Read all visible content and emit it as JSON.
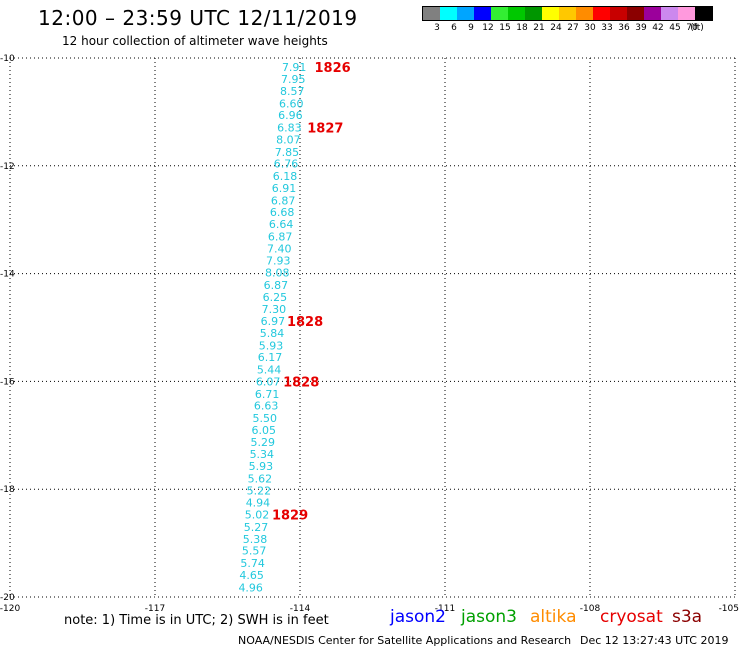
{
  "header": {
    "title": "12:00 – 23:59 UTC 12/11/2019",
    "subtitle": "12 hour collection of altimeter wave heights"
  },
  "legend": {
    "unit": "(ft)",
    "bins": [
      {
        "label": "3",
        "color": "#808080"
      },
      {
        "label": "6",
        "color": "#00ffff"
      },
      {
        "label": "9",
        "color": "#00a5ff"
      },
      {
        "label": "12",
        "color": "#0000ff"
      },
      {
        "label": "15",
        "color": "#33ee33"
      },
      {
        "label": "18",
        "color": "#00c800"
      },
      {
        "label": "21",
        "color": "#009600"
      },
      {
        "label": "24",
        "color": "#ffff00"
      },
      {
        "label": "27",
        "color": "#ffc800"
      },
      {
        "label": "30",
        "color": "#ff8c00"
      },
      {
        "label": "33",
        "color": "#ff0000"
      },
      {
        "label": "36",
        "color": "#c80000"
      },
      {
        "label": "39",
        "color": "#8b0000"
      },
      {
        "label": "42",
        "color": "#9b009b"
      },
      {
        "label": "45",
        "color": "#cc88ee"
      },
      {
        "label": "70",
        "color": "#ff99dd"
      },
      {
        "label": "",
        "color": "#000000"
      }
    ]
  },
  "chart_data": {
    "type": "map",
    "lon_range": [
      -120,
      -105
    ],
    "lat_range": [
      -20,
      -10
    ],
    "lon_ticks": [
      "-120",
      "-117",
      "-114",
      "-111",
      "-108",
      "-105"
    ],
    "lat_ticks": [
      "-10",
      "-12",
      "-14",
      "-16",
      "-18",
      "-20"
    ],
    "grid": "dotted",
    "wave_color": "#22c8dd",
    "time_color": "#e60000",
    "wave_heights": [
      {
        "lon": -114.12,
        "lat": -10.17,
        "value": "7.91"
      },
      {
        "lon": -114.14,
        "lat": -10.39,
        "value": "7.95"
      },
      {
        "lon": -114.16,
        "lat": -10.61,
        "value": "8.57"
      },
      {
        "lon": -114.18,
        "lat": -10.84,
        "value": "6.60"
      },
      {
        "lon": -114.2,
        "lat": -11.06,
        "value": "6.96"
      },
      {
        "lon": -114.22,
        "lat": -11.29,
        "value": "6.83"
      },
      {
        "lon": -114.24,
        "lat": -11.51,
        "value": "8.07"
      },
      {
        "lon": -114.27,
        "lat": -11.74,
        "value": "7.85"
      },
      {
        "lon": -114.29,
        "lat": -11.96,
        "value": "6.76"
      },
      {
        "lon": -114.31,
        "lat": -12.19,
        "value": "6.18"
      },
      {
        "lon": -114.33,
        "lat": -12.41,
        "value": "6.91"
      },
      {
        "lon": -114.35,
        "lat": -12.64,
        "value": "6.87"
      },
      {
        "lon": -114.37,
        "lat": -12.86,
        "value": "6.68"
      },
      {
        "lon": -114.39,
        "lat": -13.08,
        "value": "6.64"
      },
      {
        "lon": -114.41,
        "lat": -13.31,
        "value": "6.87"
      },
      {
        "lon": -114.43,
        "lat": -13.53,
        "value": "7.40"
      },
      {
        "lon": -114.45,
        "lat": -13.76,
        "value": "7.93"
      },
      {
        "lon": -114.47,
        "lat": -13.98,
        "value": "8.08"
      },
      {
        "lon": -114.5,
        "lat": -14.21,
        "value": "6.87"
      },
      {
        "lon": -114.52,
        "lat": -14.43,
        "value": "6.25"
      },
      {
        "lon": -114.54,
        "lat": -14.66,
        "value": "7.30"
      },
      {
        "lon": -114.56,
        "lat": -14.88,
        "value": "6.97"
      },
      {
        "lon": -114.58,
        "lat": -15.1,
        "value": "5.84"
      },
      {
        "lon": -114.6,
        "lat": -15.33,
        "value": "5.93"
      },
      {
        "lon": -114.62,
        "lat": -15.55,
        "value": "6.17"
      },
      {
        "lon": -114.64,
        "lat": -15.78,
        "value": "5.44"
      },
      {
        "lon": -114.66,
        "lat": -16.0,
        "value": "6.07"
      },
      {
        "lon": -114.68,
        "lat": -16.23,
        "value": "6.71"
      },
      {
        "lon": -114.7,
        "lat": -16.45,
        "value": "6.63"
      },
      {
        "lon": -114.73,
        "lat": -16.68,
        "value": "5.50"
      },
      {
        "lon": -114.75,
        "lat": -16.9,
        "value": "6.05"
      },
      {
        "lon": -114.77,
        "lat": -17.12,
        "value": "5.29"
      },
      {
        "lon": -114.79,
        "lat": -17.35,
        "value": "5.34"
      },
      {
        "lon": -114.81,
        "lat": -17.57,
        "value": "5.93"
      },
      {
        "lon": -114.83,
        "lat": -17.8,
        "value": "5.62"
      },
      {
        "lon": -114.85,
        "lat": -18.02,
        "value": "5.22"
      },
      {
        "lon": -114.87,
        "lat": -18.25,
        "value": "4.94"
      },
      {
        "lon": -114.89,
        "lat": -18.47,
        "value": "5.02"
      },
      {
        "lon": -114.91,
        "lat": -18.7,
        "value": "5.27"
      },
      {
        "lon": -114.93,
        "lat": -18.92,
        "value": "5.38"
      },
      {
        "lon": -114.95,
        "lat": -19.14,
        "value": "5.57"
      },
      {
        "lon": -114.98,
        "lat": -19.37,
        "value": "5.74"
      },
      {
        "lon": -115.0,
        "lat": -19.59,
        "value": "4.65"
      },
      {
        "lon": -115.02,
        "lat": -19.82,
        "value": "4.96"
      }
    ],
    "time_labels": [
      {
        "lon": -113.7,
        "lat": -10.17,
        "value": "1826"
      },
      {
        "lon": -113.85,
        "lat": -11.29,
        "value": "1827"
      },
      {
        "lon": -114.27,
        "lat": -14.88,
        "value": "1828"
      },
      {
        "lon": -114.35,
        "lat": -16.0,
        "value": "1828"
      },
      {
        "lon": -114.58,
        "lat": -18.47,
        "value": "1829"
      }
    ]
  },
  "footer": {
    "note": "note:  1) Time is in UTC;  2) SWH is in feet",
    "satellites": [
      {
        "name": "jason2",
        "color": "#0000ff"
      },
      {
        "name": "jason3",
        "color": "#00a000"
      },
      {
        "name": "altika",
        "color": "#ff8c00"
      },
      {
        "name": "cryosat",
        "color": "#e60000"
      },
      {
        "name": "s3a",
        "color": "#8b0000"
      }
    ],
    "credit": "NOAA/NESDIS Center for Satellite Applications and Research",
    "timestamp": "Dec 12 13:27:43 UTC 2019"
  }
}
